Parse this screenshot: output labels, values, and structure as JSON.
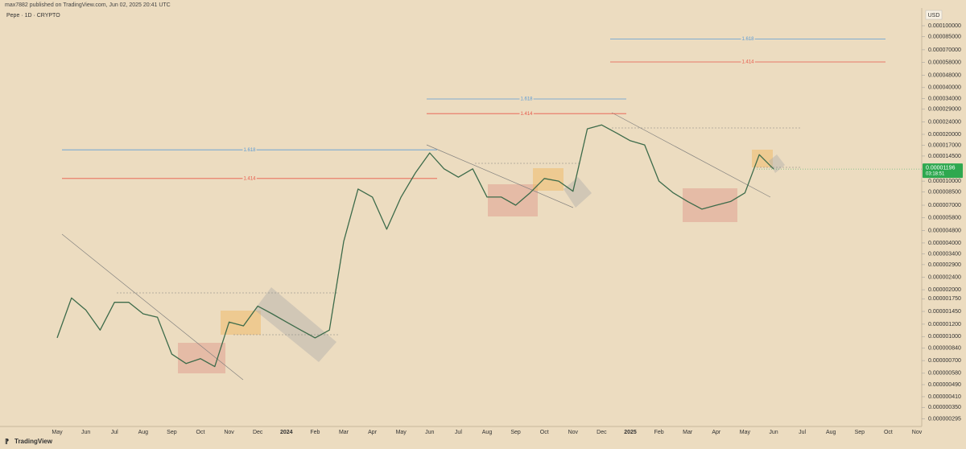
{
  "header": {
    "text": "max7882 published on TradingView.com, Jun 02, 2025 20:41 UTC"
  },
  "footer": {
    "brand": "TradingView"
  },
  "chart_data": {
    "type": "line",
    "title": "Pepe · 1D · CRYPTO",
    "currency": "USD",
    "log_scale": true,
    "grid": false,
    "color": "#3d6b4a",
    "categories": [
      "May",
      null,
      "Jun",
      null,
      "Jul",
      null,
      "Aug",
      null,
      "Sep",
      null,
      "Oct",
      null,
      "Nov",
      null,
      "Dec",
      null,
      "2024",
      null,
      "Feb",
      null,
      "Mar",
      null,
      "Apr",
      null,
      "May",
      null,
      "Jun",
      null,
      "Jul",
      null,
      "Aug",
      null,
      "Sep",
      null,
      "Oct",
      null,
      "Nov",
      null,
      "Dec",
      null,
      "2025",
      null,
      "Feb",
      null,
      "Mar",
      null,
      "Apr",
      null,
      "May",
      null,
      "Jun",
      null,
      "Jul",
      null,
      "Aug",
      null,
      "Sep",
      null,
      "Oct",
      null,
      "Nov"
    ],
    "values": [
      9.8e-07,
      1.77e-06,
      1.48e-06,
      1.1e-06,
      1.66e-06,
      1.66e-06,
      1.4e-06,
      1.33e-06,
      7.7e-07,
      6.7e-07,
      7.2e-07,
      6.4e-07,
      1.24e-06,
      1.17e-06,
      1.57e-06,
      1.4e-06,
      1.24e-06,
      1.1e-06,
      9.8e-07,
      1.1e-06,
      4.1e-06,
      8.9e-06,
      7.9e-06,
      4.9e-06,
      7.9e-06,
      1.13e-05,
      1.52e-05,
      1.2e-05,
      1.06e-05,
      1.2e-05,
      7.9e-06,
      7.9e-06,
      7e-06,
      8.4e-06,
      1.04e-05,
      1e-05,
      8.6e-06,
      2.17e-05,
      2.3e-05,
      2.05e-05,
      1.82e-05,
      1.71e-05,
      1e-05,
      8.4e-06,
      7.4e-06,
      6.6e-06,
      7e-06,
      7.4e-06,
      8.4e-06,
      1.48e-05,
      1.196e-05,
      null,
      null,
      null,
      null,
      null,
      null,
      null,
      null,
      null,
      null
    ],
    "ylim": [
      2.34e-07,
      0.00013
    ],
    "yticks": [
      {
        "value": 0.0001,
        "label": "0.000100000"
      },
      {
        "value": 8.5e-05,
        "label": "0.000085000"
      },
      {
        "value": 7e-05,
        "label": "0.000070000"
      },
      {
        "value": 5.8e-05,
        "label": "0.000058000"
      },
      {
        "value": 4.8e-05,
        "label": "0.000048000"
      },
      {
        "value": 4e-05,
        "label": "0.000040000"
      },
      {
        "value": 3.4e-05,
        "label": "0.000034000"
      },
      {
        "value": 2.9e-05,
        "label": "0.000029000"
      },
      {
        "value": 2.4e-05,
        "label": "0.000024000"
      },
      {
        "value": 2e-05,
        "label": "0.000020000"
      },
      {
        "value": 1.7e-05,
        "label": "0.000017000"
      },
      {
        "value": 1.45e-05,
        "label": "0.000014500"
      },
      {
        "value": 1e-05,
        "label": "0.000010000"
      },
      {
        "value": 8.5e-06,
        "label": "0.000008500"
      },
      {
        "value": 7e-06,
        "label": "0.000007000"
      },
      {
        "value": 5.8e-06,
        "label": "0.000005800"
      },
      {
        "value": 4.8e-06,
        "label": "0.000004800"
      },
      {
        "value": 4e-06,
        "label": "0.000004000"
      },
      {
        "value": 3.4e-06,
        "label": "0.000003400"
      },
      {
        "value": 2.9e-06,
        "label": "0.000002900"
      },
      {
        "value": 2.4e-06,
        "label": "0.000002400"
      },
      {
        "value": 2e-06,
        "label": "0.000002000"
      },
      {
        "value": 1.75e-06,
        "label": "0.000001750"
      },
      {
        "value": 1.45e-06,
        "label": "0.000001450"
      },
      {
        "value": 1.2e-06,
        "label": "0.000001200"
      },
      {
        "value": 1e-06,
        "label": "0.000001000"
      },
      {
        "value": 8.4e-07,
        "label": "0.000000840"
      },
      {
        "value": 7e-07,
        "label": "0.000000700"
      },
      {
        "value": 5.8e-07,
        "label": "0.000000580"
      },
      {
        "value": 4.9e-07,
        "label": "0.000000490"
      },
      {
        "value": 4.1e-07,
        "label": "0.000000410"
      },
      {
        "value": 3.5e-07,
        "label": "0.000000350"
      },
      {
        "value": 2.95e-07,
        "label": "0.000000295"
      }
    ],
    "last_price": 1.196e-05,
    "countdown": "03:18:51",
    "annotations": [
      {
        "label": "1.618",
        "value": 1.59e-05,
        "color": "#5b9bd5"
      },
      {
        "label": "1.414",
        "value": 1.04e-05,
        "color": "#e8584a"
      },
      {
        "label": "1.618",
        "value": 3.38e-05,
        "color": "#5b9bd5"
      },
      {
        "label": "1.414",
        "value": 2.72e-05,
        "color": "#e8584a"
      },
      {
        "label": "1.618",
        "value": 8.2e-05,
        "color": "#5b9bd5"
      },
      {
        "label": "1.414",
        "value": 5.85e-05,
        "color": "#e8584a"
      }
    ]
  }
}
